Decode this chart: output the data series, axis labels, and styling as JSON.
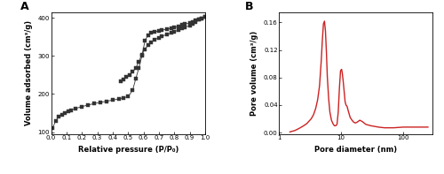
{
  "panel_A": {
    "label": "A",
    "xlabel": "Relative pressure (P/P₀)",
    "ylabel": "Volume adsorbed (cm³/g)",
    "xlim": [
      0.0,
      1.0
    ],
    "ylim": [
      95,
      415
    ],
    "yticks": [
      100,
      200,
      300,
      400
    ],
    "xticks": [
      0.0,
      0.1,
      0.2,
      0.3,
      0.4,
      0.5,
      0.6,
      0.7,
      0.8,
      0.9,
      1.0
    ],
    "color": "#333333",
    "marker": "s",
    "markersize": 2.8,
    "linewidth": 0.6,
    "adsorption_x": [
      0.01,
      0.03,
      0.05,
      0.07,
      0.09,
      0.11,
      0.13,
      0.16,
      0.2,
      0.24,
      0.28,
      0.32,
      0.36,
      0.4,
      0.44,
      0.47,
      0.5,
      0.53,
      0.55,
      0.57,
      0.59,
      0.61,
      0.63,
      0.65,
      0.67,
      0.7,
      0.72,
      0.75,
      0.78,
      0.8,
      0.83,
      0.85,
      0.87,
      0.9,
      0.92,
      0.94,
      0.96,
      0.98,
      1.0
    ],
    "adsorption_y": [
      110,
      130,
      140,
      146,
      151,
      155,
      158,
      162,
      167,
      171,
      175,
      178,
      181,
      184,
      187,
      190,
      193,
      210,
      240,
      268,
      300,
      340,
      355,
      360,
      363,
      366,
      368,
      370,
      373,
      375,
      378,
      381,
      384,
      387,
      390,
      393,
      396,
      399,
      402
    ],
    "desorption_x": [
      1.0,
      0.98,
      0.96,
      0.94,
      0.92,
      0.9,
      0.87,
      0.85,
      0.83,
      0.8,
      0.78,
      0.75,
      0.72,
      0.7,
      0.67,
      0.65,
      0.63,
      0.61,
      0.59,
      0.57,
      0.55,
      0.53,
      0.51,
      0.49,
      0.47,
      0.45
    ],
    "desorption_y": [
      402,
      399,
      395,
      390,
      385,
      380,
      375,
      372,
      368,
      364,
      360,
      356,
      352,
      348,
      342,
      336,
      328,
      318,
      304,
      285,
      268,
      258,
      250,
      244,
      238,
      233
    ]
  },
  "panel_B": {
    "label": "B",
    "xlabel": "Pore diameter (nm)",
    "ylabel": "Pore volume (cm³/g)",
    "xlim_log": [
      1,
      300
    ],
    "ylim": [
      -0.002,
      0.175
    ],
    "yticks": [
      0.0,
      0.04,
      0.08,
      0.12,
      0.16
    ],
    "color": "#cc2222",
    "linewidth": 1.0,
    "pore_x": [
      1.5,
      1.8,
      2.0,
      2.2,
      2.5,
      2.8,
      3.0,
      3.3,
      3.6,
      3.9,
      4.2,
      4.5,
      4.8,
      5.0,
      5.2,
      5.4,
      5.6,
      5.8,
      6.0,
      6.3,
      6.6,
      7.0,
      7.4,
      7.8,
      8.2,
      8.6,
      9.0,
      9.4,
      9.8,
      10.2,
      10.5,
      10.8,
      11.2,
      11.6,
      12.0,
      12.5,
      13.0,
      14.0,
      15.0,
      16.0,
      17.0,
      18.0,
      20.0,
      22.0,
      25.0,
      30.0,
      40.0,
      50.0,
      70.0,
      100.0,
      150.0,
      200.0,
      250.0
    ],
    "pore_y": [
      0.001,
      0.003,
      0.005,
      0.007,
      0.01,
      0.013,
      0.016,
      0.02,
      0.026,
      0.035,
      0.048,
      0.068,
      0.105,
      0.135,
      0.158,
      0.162,
      0.148,
      0.118,
      0.082,
      0.05,
      0.03,
      0.018,
      0.013,
      0.01,
      0.01,
      0.012,
      0.03,
      0.065,
      0.09,
      0.092,
      0.085,
      0.075,
      0.06,
      0.045,
      0.04,
      0.038,
      0.032,
      0.022,
      0.018,
      0.015,
      0.014,
      0.015,
      0.018,
      0.016,
      0.012,
      0.01,
      0.008,
      0.007,
      0.007,
      0.008,
      0.008,
      0.008,
      0.008
    ]
  }
}
